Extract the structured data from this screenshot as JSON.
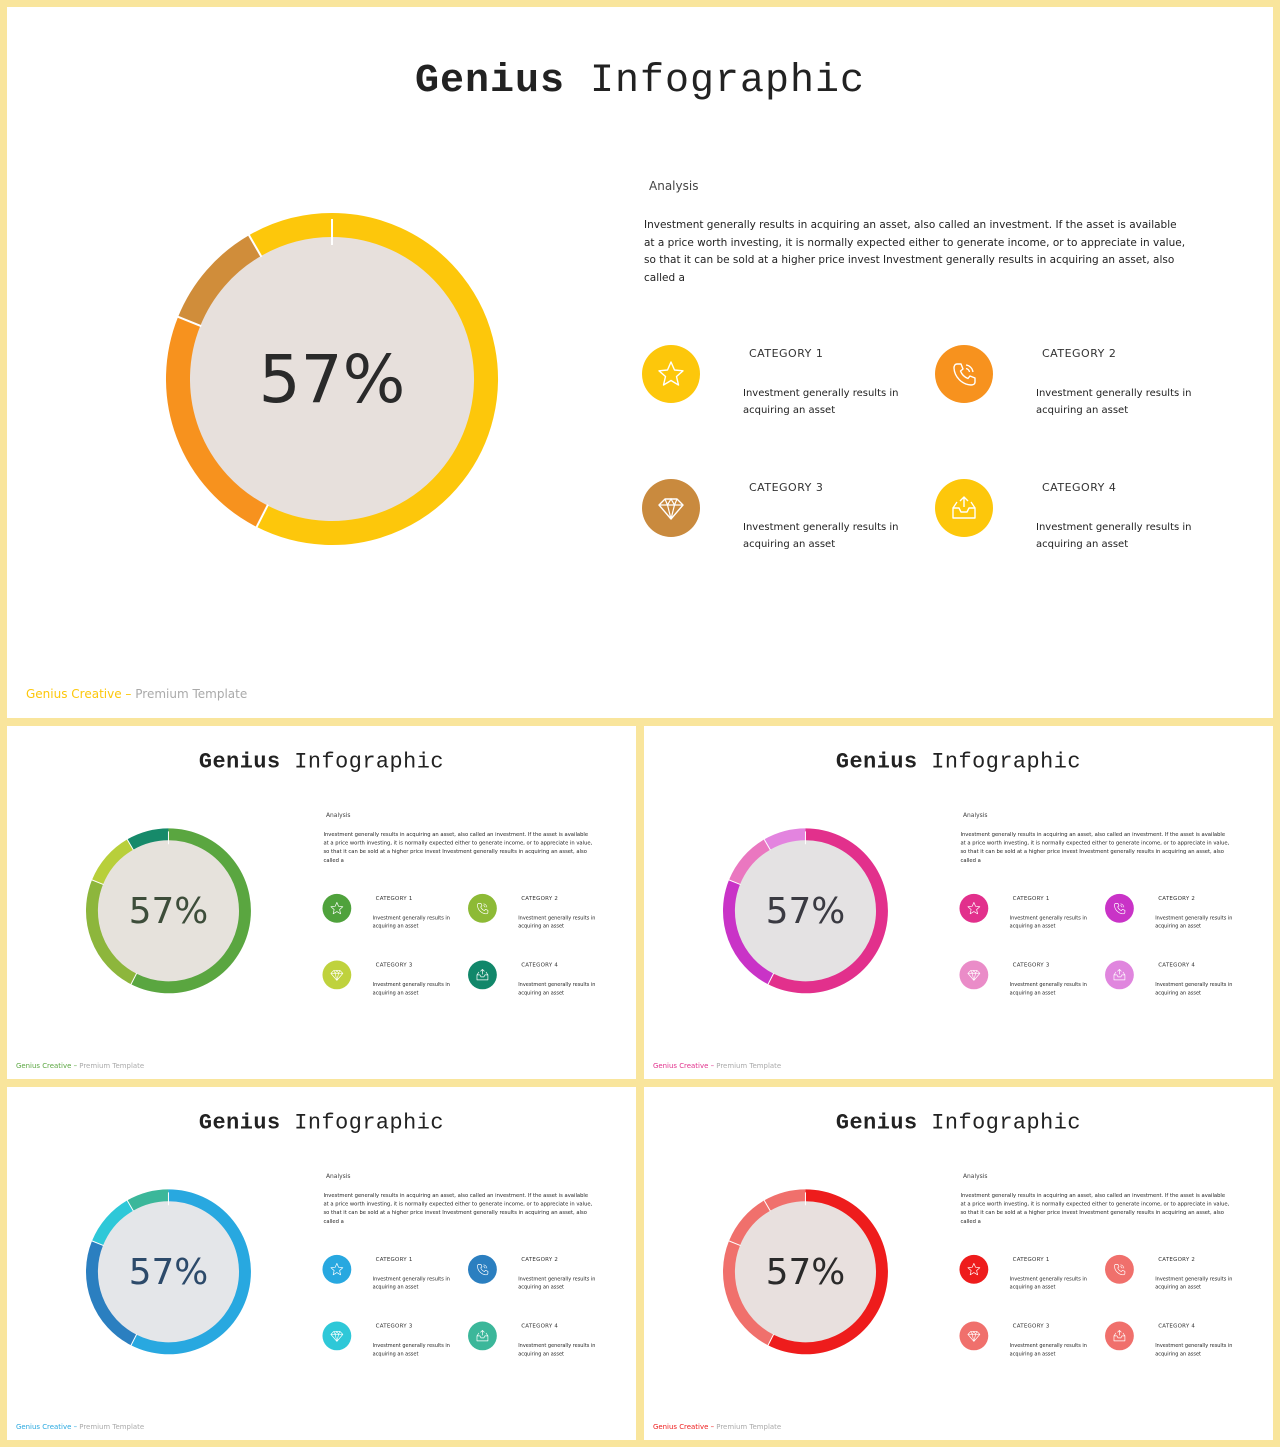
{
  "title": {
    "bold": "Genius",
    "light": "Infographic"
  },
  "percentage": "57%",
  "analysis": {
    "heading": "Analysis",
    "body": "Investment generally results in acquiring an asset, also called an investment. If the asset is available at a price worth investing, it is normally expected either to generate income, or to appreciate in value, so that it can be sold at a higher price invest Investment generally results in acquiring an asset, also called a"
  },
  "categories": [
    {
      "name": "CATEGORY  1",
      "desc": "Investment generally results in acquiring an asset",
      "icon": "star-icon"
    },
    {
      "name": "CATEGORY  2",
      "desc": "Investment generally results in acquiring an asset",
      "icon": "phone-icon"
    },
    {
      "name": "CATEGORY  3",
      "desc": "Investment generally results in acquiring an asset",
      "icon": "diamond-icon"
    },
    {
      "name": "CATEGORY  4",
      "desc": "Investment generally results in acquiring an asset",
      "icon": "inbox-icon"
    }
  ],
  "footer": {
    "brand": "Genius Creative",
    "sep": " – ",
    "rest": "Premium Template"
  },
  "themes": [
    {
      "id": "main",
      "donut": [
        "#fdc70b",
        "#f7921e",
        "#d08d3a",
        "#fdc70b"
      ],
      "center": "#e7e0dc",
      "icons": [
        "#fdc70b",
        "#f7921e",
        "#c98a3e",
        "#fdc70b"
      ],
      "brand": "#fdc70b",
      "pct_color": "#2a2a2a"
    },
    {
      "id": "green",
      "donut": [
        "#5aa640",
        "#8db63c",
        "#b8cf3a",
        "#168a6a"
      ],
      "center": "#e6e2dc",
      "icons": [
        "#4fa23c",
        "#8dba36",
        "#bfd23d",
        "#11876a"
      ],
      "brand": "#5aa640",
      "pct_color": "#3d4d3a"
    },
    {
      "id": "pink",
      "donut": [
        "#e2308c",
        "#c933c7",
        "#ea77c0",
        "#e384df"
      ],
      "center": "#e4e2e3",
      "icons": [
        "#e2308c",
        "#c933c7",
        "#ea8cc8",
        "#e086de"
      ],
      "brand": "#e2308c",
      "pct_color": "#3a3a42"
    },
    {
      "id": "blue",
      "donut": [
        "#28a8e0",
        "#2b7fc0",
        "#2ec8d8",
        "#3bb79a"
      ],
      "center": "#e4e6e9",
      "icons": [
        "#28a8e0",
        "#2b7fc0",
        "#2ec8d8",
        "#3bb79a"
      ],
      "brand": "#28a8e0",
      "pct_color": "#2c4a6a"
    },
    {
      "id": "red",
      "donut": [
        "#ee1c1c",
        "#f0706c",
        "#f0706c",
        "#f0706c"
      ],
      "center": "#e8e0de",
      "icons": [
        "#ee1c1c",
        "#f0706c",
        "#f0706c",
        "#f0706c"
      ],
      "brand": "#ee1c1c",
      "pct_color": "#2a2a2a"
    }
  ]
}
